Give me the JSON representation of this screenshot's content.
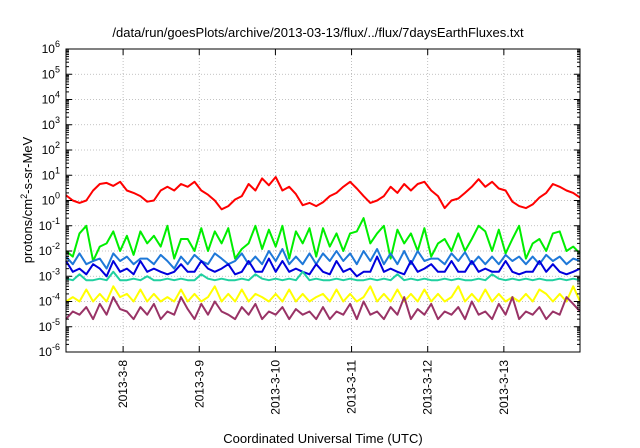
{
  "chart_data": {
    "type": "line",
    "title": "/data/run/goesPlots/archive/2013-03-13/flux/../flux/7daysEarthFluxes.txt",
    "xlabel": "Coordinated Universal Time (UTC)",
    "ylabel": {
      "pre": "protons/cm",
      "sup": "2",
      "post": "-s-sr-MeV"
    },
    "y_scale": "log",
    "ylim": [
      1e-06,
      1000000.0
    ],
    "xlim": [
      "2013-03-07T06:00",
      "2013-03-14T00:00"
    ],
    "y_ticks": [
      {
        "value": 1e-06,
        "base": "10",
        "exp": "-6"
      },
      {
        "value": 1e-05,
        "base": "10",
        "exp": "-5"
      },
      {
        "value": 0.0001,
        "base": "10",
        "exp": "-4"
      },
      {
        "value": 0.001,
        "base": "10",
        "exp": "-3"
      },
      {
        "value": 0.01,
        "base": "10",
        "exp": "-2"
      },
      {
        "value": 0.1,
        "base": "10",
        "exp": "-1"
      },
      {
        "value": 1.0,
        "base": "10",
        "exp": "0"
      },
      {
        "value": 10.0,
        "base": "10",
        "exp": "1"
      },
      {
        "value": 100.0,
        "base": "10",
        "exp": "2"
      },
      {
        "value": 1000.0,
        "base": "10",
        "exp": "3"
      },
      {
        "value": 10000.0,
        "base": "10",
        "exp": "4"
      },
      {
        "value": 100000.0,
        "base": "10",
        "exp": "5"
      },
      {
        "value": 1000000.0,
        "base": "10",
        "exp": "6"
      }
    ],
    "x_ticks": [
      {
        "value": "2013-03-08T00:00",
        "label": "2013-3-8"
      },
      {
        "value": "2013-03-09T00:00",
        "label": "2013-3-9"
      },
      {
        "value": "2013-03-10T00:00",
        "label": "2013-3-10"
      },
      {
        "value": "2013-03-11T00:00",
        "label": "2013-3-11"
      },
      {
        "value": "2013-03-12T00:00",
        "label": "2013-3-12"
      },
      {
        "value": "2013-03-13T00:00",
        "label": "2013-3-13"
      }
    ],
    "grid": true,
    "series": [
      {
        "color": "#ff0000",
        "values": [
          1.6,
          1.0,
          0.8,
          1.0,
          2.5,
          4.5,
          5,
          3.8,
          5.5,
          2.5,
          2.0,
          1.5,
          0.9,
          1.0,
          2.5,
          3.5,
          2.5,
          4.5,
          3.5,
          5.5,
          2.5,
          1.7,
          1.0,
          0.45,
          0.6,
          1.1,
          1.5,
          4.5,
          2.5,
          7.5,
          4.0,
          8.5,
          2.5,
          3.5,
          1.8,
          0.65,
          0.8,
          0.6,
          0.85,
          1.5,
          2.0,
          3.5,
          5.5,
          3.0,
          1.5,
          0.8,
          1.0,
          1.5,
          3.5,
          2.0,
          4.5,
          2.5,
          4.5,
          5.5,
          2.5,
          1.5,
          0.5,
          1.0,
          1.2,
          2.0,
          3.5,
          7,
          3.5,
          5.5,
          3.0,
          2.5,
          0.9,
          0.6,
          0.5,
          0.7,
          1.3,
          2.0,
          4.5,
          3.5,
          2.5,
          2.0,
          1.3
        ]
      },
      {
        "color": "#00ee00",
        "values": [
          0.01,
          0.006,
          0.05,
          0.1,
          0.004,
          0.015,
          0.02,
          0.06,
          0.01,
          0.04,
          0.007,
          0.06,
          0.02,
          0.04,
          0.015,
          0.1,
          0.005,
          0.03,
          0.03,
          0.01,
          0.08,
          0.01,
          0.06,
          0.02,
          0.08,
          0.005,
          0.012,
          0.02,
          0.1,
          0.012,
          0.07,
          0.015,
          0.1,
          0.005,
          0.06,
          0.02,
          0.08,
          0.006,
          0.08,
          0.015,
          0.05,
          0.01,
          0.05,
          0.06,
          0.2,
          0.02,
          0.05,
          0.1,
          0.005,
          0.07,
          0.02,
          0.05,
          0.01,
          0.08,
          0.006,
          0.02,
          0.03,
          0.01,
          0.05,
          0.01,
          0.03,
          0.1,
          0.06,
          0.01,
          0.07,
          0.008,
          0.03,
          0.1,
          0.005,
          0.02,
          0.03,
          0.01,
          0.05,
          0.06,
          0.01,
          0.015,
          0.008
        ]
      },
      {
        "color": "#1e78d8",
        "values": [
          0.006,
          0.003,
          0.008,
          0.003,
          0.004,
          0.005,
          0.002,
          0.008,
          0.004,
          0.006,
          0.003,
          0.005,
          0.005,
          0.003,
          0.007,
          0.004,
          0.002,
          0.006,
          0.003,
          0.007,
          0.004,
          0.003,
          0.008,
          0.005,
          0.003,
          0.004,
          0.008,
          0.003,
          0.006,
          0.003,
          0.01,
          0.004,
          0.012,
          0.003,
          0.006,
          0.003,
          0.008,
          0.003,
          0.008,
          0.004,
          0.01,
          0.004,
          0.008,
          0.003,
          0.01,
          0.004,
          0.012,
          0.003,
          0.008,
          0.003,
          0.01,
          0.003,
          0.01,
          0.004,
          0.005,
          0.005,
          0.003,
          0.008,
          0.004,
          0.009,
          0.003,
          0.006,
          0.003,
          0.006,
          0.003,
          0.007,
          0.004,
          0.006,
          0.003,
          0.006,
          0.003,
          0.007,
          0.004,
          0.006,
          0.003,
          0.005,
          0.004
        ]
      },
      {
        "color": "#0000dd",
        "values": [
          0.004,
          0.0015,
          0.002,
          0.0012,
          0.003,
          0.002,
          0.001,
          0.004,
          0.0015,
          0.002,
          0.0012,
          0.004,
          0.0015,
          0.002,
          0.0015,
          0.0012,
          0.0015,
          0.003,
          0.0015,
          0.0015,
          0.004,
          0.002,
          0.0015,
          0.002,
          0.003,
          0.0012,
          0.0015,
          0.004,
          0.0015,
          0.0015,
          0.005,
          0.0015,
          0.004,
          0.0015,
          0.002,
          0.0015,
          0.0012,
          0.003,
          0.0015,
          0.0012,
          0.004,
          0.0015,
          0.002,
          0.001,
          0.0015,
          0.0015,
          0.006,
          0.0015,
          0.002,
          0.0015,
          0.0012,
          0.004,
          0.0015,
          0.002,
          0.003,
          0.0015,
          0.0015,
          0.004,
          0.0015,
          0.0015,
          0.004,
          0.0015,
          0.002,
          0.0015,
          0.0015,
          0.004,
          0.0015,
          0.0012,
          0.0015,
          0.0015,
          0.004,
          0.0015,
          0.003,
          0.0015,
          0.0012,
          0.0015,
          0.002
        ]
      },
      {
        "color": "#20d0a0",
        "values": [
          0.0008,
          0.0007,
          0.0012,
          0.0007,
          0.0007,
          0.0008,
          0.0007,
          0.0015,
          0.0007,
          0.0007,
          0.0008,
          0.0007,
          0.001,
          0.0007,
          0.0007,
          0.0008,
          0.0007,
          0.0008,
          0.0007,
          0.0007,
          0.0012,
          0.0008,
          0.0007,
          0.0008,
          0.0007,
          0.0007,
          0.0008,
          0.0007,
          0.0012,
          0.0008,
          0.0007,
          0.0008,
          0.0007,
          0.0008,
          0.0007,
          0.0015,
          0.0007,
          0.0008,
          0.0007,
          0.0007,
          0.0008,
          0.0007,
          0.0008,
          0.0007,
          0.0007,
          0.0008,
          0.0007,
          0.0008,
          0.0007,
          0.0012,
          0.0007,
          0.0008,
          0.0007,
          0.0008,
          0.0007,
          0.0007,
          0.0008,
          0.0007,
          0.0008,
          0.0007,
          0.0007,
          0.0008,
          0.0007,
          0.0012,
          0.0008,
          0.0007,
          0.0008,
          0.0007,
          0.0008,
          0.0007,
          0.0008,
          0.0007,
          0.0007,
          0.0008,
          0.0007,
          0.0008,
          0.0007
        ]
      },
      {
        "color": "#ffff00",
        "values": [
          0.0001,
          0.00015,
          0.0001,
          0.0003,
          0.0001,
          0.0002,
          0.0001,
          0.0004,
          0.00015,
          0.0002,
          0.0001,
          0.0003,
          0.0001,
          0.0002,
          0.0001,
          0.00015,
          0.0001,
          0.0003,
          0.0001,
          0.0002,
          0.0001,
          0.00015,
          0.0004,
          0.0001,
          0.0002,
          0.0001,
          0.0003,
          0.0001,
          0.0002,
          0.00015,
          0.0001,
          0.0002,
          0.0001,
          0.0003,
          0.0001,
          0.0002,
          0.0001,
          0.00015,
          0.0002,
          0.0001,
          0.0003,
          0.0001,
          0.0002,
          0.0001,
          0.00015,
          0.0004,
          0.0001,
          0.0002,
          0.0001,
          0.0003,
          0.0001,
          0.0002,
          0.0001,
          0.0003,
          0.0001,
          0.0002,
          0.0001,
          0.00015,
          0.0004,
          0.0001,
          0.0002,
          0.0001,
          0.0003,
          0.0001,
          0.0002,
          0.0001,
          0.00015,
          0.0001,
          0.0002,
          0.0001,
          0.0003,
          0.0002,
          0.0001,
          0.0002,
          0.0001,
          0.0004,
          0.0001
        ]
      },
      {
        "color": "#993366",
        "values": [
          2e-05,
          4e-05,
          3e-05,
          6e-05,
          2e-05,
          8e-05,
          3e-05,
          0.00015,
          5e-05,
          4e-05,
          2e-05,
          6e-05,
          3e-05,
          8e-05,
          2e-05,
          4e-05,
          3e-05,
          0.00015,
          5e-05,
          2e-05,
          8e-05,
          3e-05,
          0.0001,
          4e-05,
          3e-05,
          2e-05,
          6e-05,
          3e-05,
          8e-05,
          2e-05,
          4e-05,
          3e-05,
          6e-05,
          2e-05,
          5e-05,
          3e-05,
          4e-05,
          2e-05,
          6e-05,
          2e-05,
          4e-05,
          3e-05,
          8e-05,
          2e-05,
          0.0001,
          3e-05,
          4e-05,
          2e-05,
          6e-05,
          3e-05,
          0.00015,
          2e-05,
          5e-05,
          3e-05,
          8e-05,
          2e-05,
          4e-05,
          3e-05,
          6e-05,
          2e-05,
          0.0001,
          3e-05,
          4e-05,
          2e-05,
          8e-05,
          3e-05,
          0.00015,
          2e-05,
          4e-05,
          3e-05,
          6e-05,
          2e-05,
          4e-05,
          3e-05,
          0.00015,
          8e-05,
          4e-05
        ]
      }
    ]
  }
}
